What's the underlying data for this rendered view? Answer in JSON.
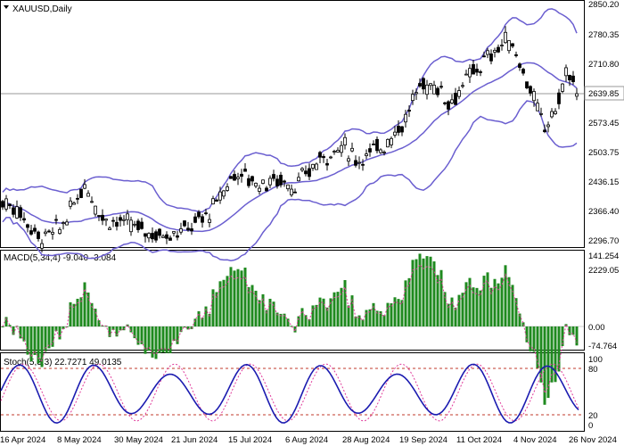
{
  "window": {
    "title": "XAUUSD,Daily"
  },
  "price_axis": {
    "ticks": [
      "2850.20",
      "2780.35",
      "2710.80",
      "2573.45",
      "2503.75",
      "2436.15",
      "2366.40",
      "2296.70",
      "2229.05"
    ],
    "current_price": "2639.85"
  },
  "macd": {
    "label": "MACD(5,34,4) -9.040 -3.084",
    "ticks": [
      "141.254",
      "0.00",
      "-74.764"
    ]
  },
  "stoch": {
    "label": "Stoch(5,3,3) 22.7271 49.0135",
    "ticks": [
      "100",
      "80",
      "20",
      "0"
    ]
  },
  "time_axis": {
    "labels": [
      "16 Apr 2024",
      "8 May 2024",
      "30 May 2024",
      "21 Jun 2024",
      "15 Jul 2024",
      "6 Aug 2024",
      "28 Aug 2024",
      "19 Sep 2024",
      "11 Oct 2024",
      "4 Nov 2024",
      "26 Nov 2024"
    ]
  },
  "colors": {
    "bollinger": "#6b5fd0",
    "macd_hist": "#1f8a1f",
    "macd_signal": "#e0399a",
    "stoch_main": "#1b1bb0",
    "stoch_signal": "#e0399a",
    "level_line": "#c0392b",
    "price_line": "#999999",
    "candle": "#000000"
  },
  "chart_data": {
    "type": "line",
    "title": "XAUUSD,Daily",
    "x": [
      "16 Apr 2024",
      "8 May 2024",
      "30 May 2024",
      "21 Jun 2024",
      "15 Jul 2024",
      "6 Aug 2024",
      "28 Aug 2024",
      "19 Sep 2024",
      "11 Oct 2024",
      "4 Nov 2024",
      "26 Nov 2024"
    ],
    "series": [
      {
        "name": "XAUUSD",
        "values": [
          2390,
          2320,
          2335,
          2320,
          2420,
          2400,
          2510,
          2600,
          2690,
          2680,
          2640
        ]
      }
    ],
    "ylim": [
      2229.05,
      2850.2
    ],
    "macd_ylim": [
      -74.764,
      141.254
    ],
    "stoch_levels": [
      20,
      80
    ]
  }
}
